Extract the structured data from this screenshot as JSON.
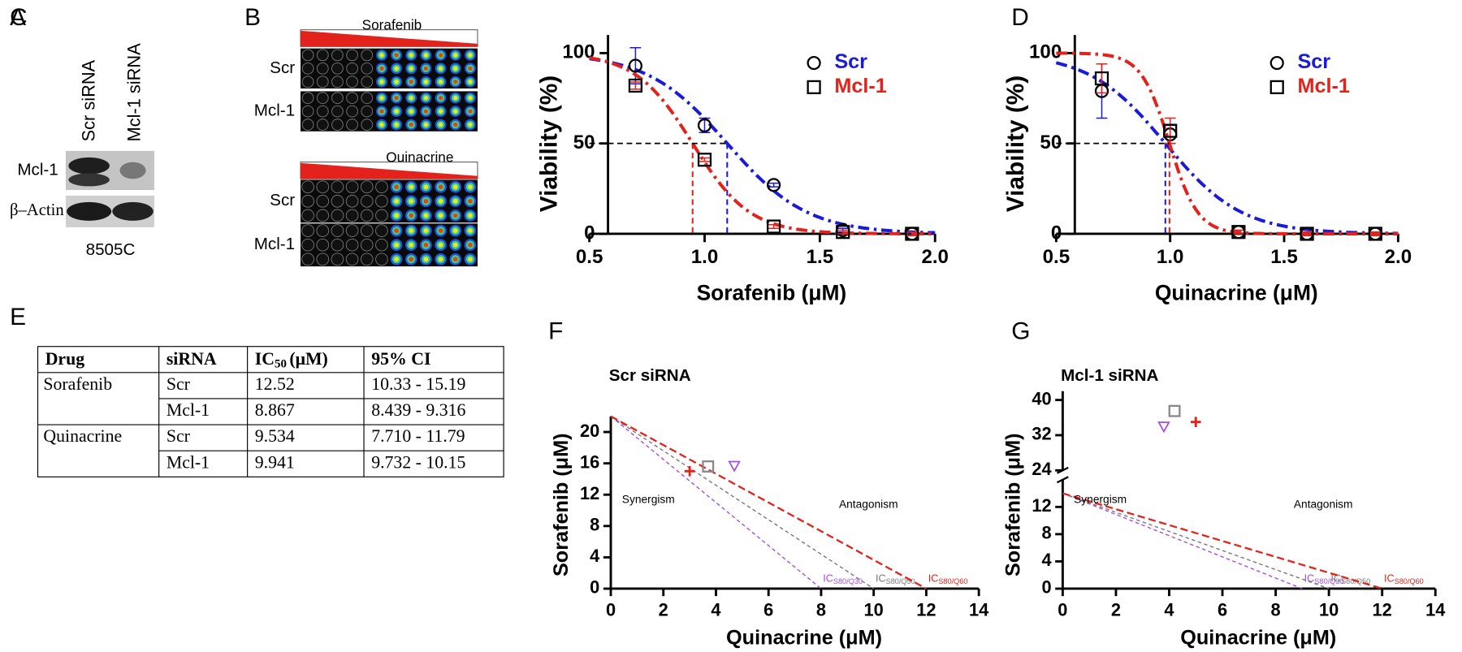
{
  "blot": {
    "panel": "A",
    "lanes": [
      "Scr siRNA",
      "Mcl-1 siRNA"
    ],
    "bands": [
      "Mcl-1",
      "β–Actin"
    ],
    "cell_line": "8505C"
  },
  "screen": {
    "panel": "B",
    "drugs": [
      {
        "name": "Sorafenib",
        "rows": [
          "Scr",
          "Mcl-1"
        ]
      },
      {
        "name": "Quinacrine",
        "rows": [
          "Scr",
          "Mcl-1"
        ]
      }
    ]
  },
  "table": {
    "panel": "E",
    "header": [
      "Drug",
      "siRNA",
      {
        "main": "IC",
        "sub": "50",
        "unit": "(μM)"
      },
      "95% CI"
    ],
    "groups": [
      {
        "drug": "Sorafenib",
        "rows": [
          [
            "Scr",
            "12.52",
            "10.33 - 15.19"
          ],
          [
            "Mcl-1",
            "8.867",
            "8.439 - 9.316"
          ]
        ]
      },
      {
        "drug": "Quinacrine",
        "rows": [
          [
            "Scr",
            "9.534",
            "7.710 - 11.79"
          ],
          [
            "Mcl-1",
            "9.941",
            "9.732 - 10.15"
          ]
        ]
      }
    ]
  },
  "chart_data": [
    {
      "panel": "C",
      "type": "dose-response",
      "xlabel": "Sorafenib (μM)",
      "ylabel": "Viability (%)",
      "xlim": [
        0.5,
        2.0
      ],
      "xticks": [
        0.5,
        {
          "value": 1,
          "label": "1.0"
        },
        1.5,
        {
          "value": 2,
          "label": "2.0"
        }
      ],
      "ylim": [
        0,
        110
      ],
      "yticks": [
        0,
        50,
        100
      ],
      "reference": 50,
      "x": [
        0.7,
        1.0,
        1.3,
        1.6,
        1.9
      ],
      "series": [
        {
          "name": "Scr",
          "color": "#1a1adb",
          "marker": "circle",
          "values": [
            93,
            60,
            27,
            2,
            0
          ],
          "errors": [
            10,
            4,
            1,
            1,
            1
          ],
          "fit": {
            "log_ic50": 1.098,
            "hill": 2.5,
            "top": 100,
            "bottom": 0
          }
        },
        {
          "name": "Mcl-1",
          "color": "#e3231b",
          "marker": "square",
          "values": [
            82,
            41,
            4,
            1,
            0
          ],
          "errors": [
            2,
            1,
            1,
            1,
            1
          ],
          "fit": {
            "log_ic50": 0.948,
            "hill": 3.5,
            "top": 100,
            "bottom": 0
          }
        }
      ]
    },
    {
      "panel": "D",
      "type": "dose-response",
      "xlabel": "Quinacrine (μM)",
      "ylabel": "Viability (%)",
      "xlim": [
        0.5,
        2.0
      ],
      "xticks": [
        0.5,
        {
          "value": 1,
          "label": "1.0"
        },
        1.5,
        {
          "value": 2,
          "label": "2.0"
        }
      ],
      "ylim": [
        0,
        110
      ],
      "yticks": [
        0,
        50,
        100
      ],
      "reference": 50,
      "x": [
        0.7,
        1.0,
        1.3,
        1.6,
        1.9
      ],
      "series": [
        {
          "name": "Scr",
          "color": "#1a1adb",
          "marker": "circle",
          "values": [
            79,
            55,
            1,
            0,
            0
          ],
          "errors": [
            15,
            5,
            1,
            1,
            1
          ],
          "fit": {
            "log_ic50": 0.979,
            "hill": 2.6,
            "top": 100,
            "bottom": 0
          }
        },
        {
          "name": "Mcl-1",
          "color": "#e3231b",
          "marker": "square",
          "values": [
            86,
            57,
            1,
            0,
            0
          ],
          "errors": [
            8,
            7,
            1,
            1,
            1
          ],
          "fit": {
            "log_ic50": 0.997,
            "hill": 7,
            "top": 100,
            "bottom": 0
          }
        }
      ]
    },
    {
      "panel": "F",
      "type": "isobologram",
      "title": "Scr siRNA",
      "xlabel": "Quinacrine (μM)",
      "ylabel": "Sorafenib (μM)",
      "xlim": [
        0,
        14
      ],
      "xticks": [
        0,
        2,
        4,
        6,
        8,
        10,
        12,
        14
      ],
      "ylim": [
        0,
        22
      ],
      "yticks": [
        0,
        4,
        8,
        12,
        16,
        20
      ],
      "lines": [
        {
          "name": {
            "main": "IC",
            "sub": "S80/Q30"
          },
          "color": "#a64ce0",
          "x": [
            0,
            8
          ],
          "values": [
            22,
            0
          ]
        },
        {
          "name": {
            "main": "IC",
            "sub": "S80/Q50"
          },
          "color": "#777777",
          "x": [
            0,
            10
          ],
          "values": [
            22,
            0
          ]
        },
        {
          "name": {
            "main": "IC",
            "sub": "S80/Q60"
          },
          "color": "#e3231b",
          "x": [
            0,
            12
          ],
          "values": [
            22,
            0
          ]
        }
      ],
      "points": [
        {
          "marker": "plus",
          "color": "#e3231b",
          "x": 3,
          "y": 15
        },
        {
          "marker": "square",
          "color": "#888888",
          "x": 3.7,
          "y": 15.6
        },
        {
          "marker": "triangle",
          "color": "#a64ce0",
          "x": 4.7,
          "y": 15.7
        }
      ],
      "annotations": [
        "Synergism",
        "Antagonism"
      ]
    },
    {
      "panel": "G",
      "type": "isobologram",
      "title": "Mcl-1 siRNA",
      "xlabel": "Quinacrine (μM)",
      "ylabel": "Sorafenib (μM)",
      "xlim": [
        0,
        14
      ],
      "xticks": [
        0,
        2,
        4,
        6,
        8,
        10,
        12,
        14
      ],
      "ylim": [
        0,
        16
      ],
      "yticks": [
        0,
        4,
        8,
        12
      ],
      "ylim_break": [
        24,
        42
      ],
      "yticks_break": [
        24,
        32,
        40
      ],
      "lines": [
        {
          "name": {
            "main": "IC",
            "sub": "S80/Q30"
          },
          "color": "#a64ce0",
          "x": [
            0,
            9
          ],
          "values": [
            14,
            0
          ]
        },
        {
          "name": {
            "main": "IC",
            "sub": "S80/Q50"
          },
          "color": "#777777",
          "x": [
            0,
            10
          ],
          "values": [
            14,
            0
          ]
        },
        {
          "name": {
            "main": "IC",
            "sub": "S80/Q60"
          },
          "color": "#e3231b",
          "x": [
            0,
            12
          ],
          "values": [
            14,
            0
          ]
        }
      ],
      "points": [
        {
          "marker": "square",
          "color": "#888888",
          "x": 4.2,
          "y": 37.5
        },
        {
          "marker": "plus",
          "color": "#e3231b",
          "x": 5,
          "y": 35
        },
        {
          "marker": "triangle",
          "color": "#a64ce0",
          "x": 3.8,
          "y": 34
        }
      ],
      "annotations": [
        "Synergism",
        "Antagonism"
      ]
    }
  ]
}
